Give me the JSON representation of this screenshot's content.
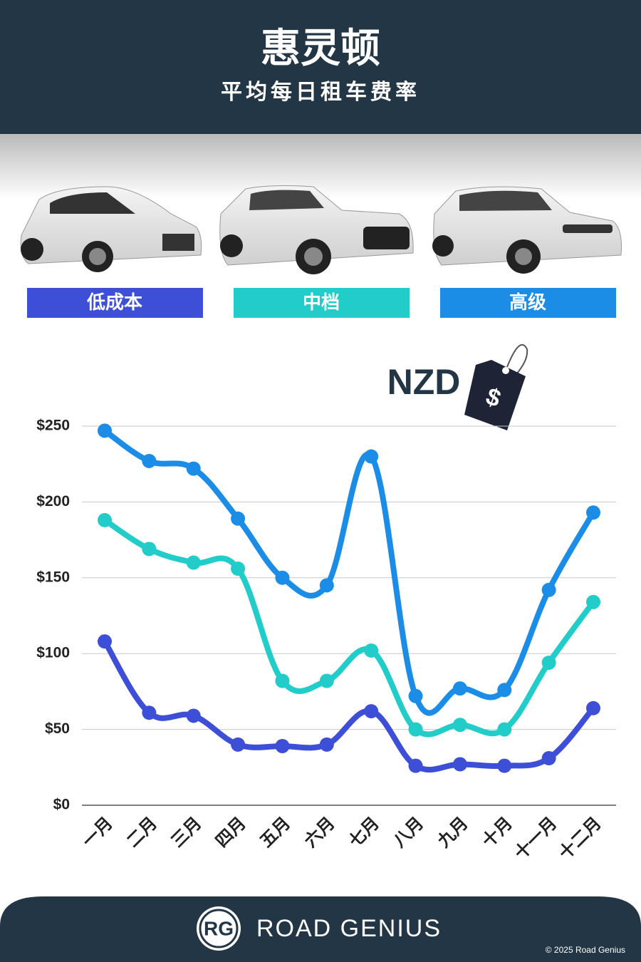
{
  "chart_data": {
    "type": "line",
    "title": "惠灵顿",
    "subtitle": "平均每日租车费率",
    "annotation": "NZD",
    "tag_symbol": "$",
    "categories": [
      "一月",
      "二月",
      "三月",
      "四月",
      "五月",
      "六月",
      "七月",
      "八月",
      "九月",
      "十月",
      "十一月",
      "十二月"
    ],
    "series": [
      {
        "name": "低成本",
        "color": "#3d4fd6",
        "values": [
          108,
          61,
          59,
          40,
          39,
          40,
          62,
          26,
          27,
          26,
          31,
          64
        ]
      },
      {
        "name": "中档",
        "color": "#22cdc9",
        "values": [
          188,
          169,
          160,
          156,
          82,
          82,
          102,
          50,
          53,
          50,
          94,
          134
        ]
      },
      {
        "name": "高级",
        "color": "#1b8de6",
        "values": [
          247,
          227,
          222,
          189,
          150,
          145,
          230,
          72,
          77,
          76,
          142,
          193
        ]
      }
    ],
    "ylim": [
      0,
      250
    ],
    "yticks": [
      {
        "value": 0,
        "label": "$0"
      },
      {
        "value": 50,
        "label": "$50"
      },
      {
        "value": 100,
        "label": "$100"
      },
      {
        "value": 150,
        "label": "$150"
      },
      {
        "value": 200,
        "label": "$200"
      },
      {
        "value": 250,
        "label": "$250"
      }
    ],
    "grid": true
  },
  "footer": {
    "logo": "RG",
    "brand": "ROAD GENIUS",
    "copyright": "© 2025 Road Genius"
  }
}
